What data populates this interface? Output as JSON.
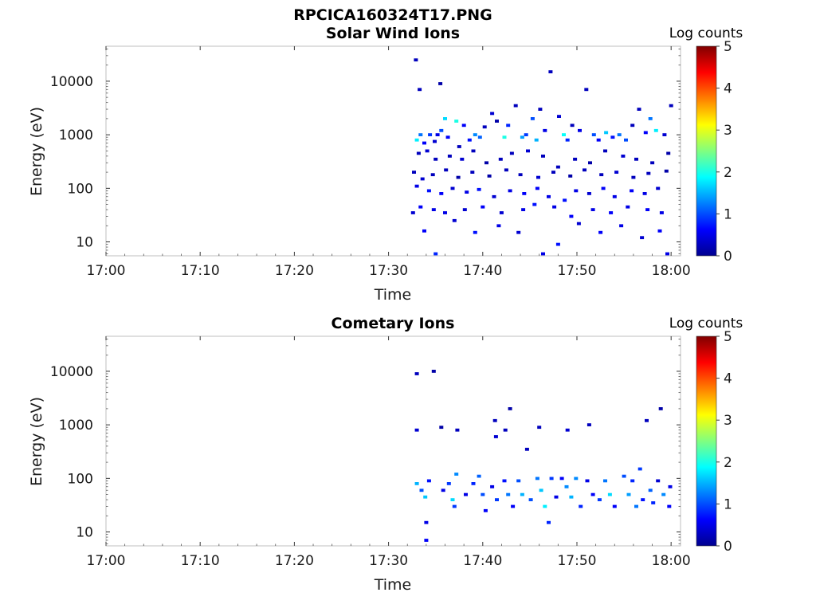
{
  "figure_title": "RPCICA160324T17.PNG",
  "chart_data": [
    {
      "type": "heatmap",
      "title": "Solar Wind Ions",
      "xlabel": "Time",
      "ylabel": "Energy (eV)",
      "x_ticks": [
        "17:00",
        "17:10",
        "17:20",
        "17:30",
        "17:40",
        "17:50",
        "18:00"
      ],
      "x_range": [
        "17:00",
        "18:01"
      ],
      "y_scale": "log",
      "y_ticks": [
        "10",
        "100",
        "1000",
        "10000"
      ],
      "y_range": [
        5.5,
        45000
      ],
      "colorbar": {
        "label": "Log counts",
        "ticks": [
          "0",
          "1",
          "2",
          "3",
          "4",
          "5"
        ],
        "range": [
          0,
          5
        ]
      },
      "cells": [
        [
          32.9,
          25000,
          0.3
        ],
        [
          33.3,
          7000,
          0.3
        ],
        [
          35.5,
          9000,
          0.2
        ],
        [
          33.0,
          800,
          1.8
        ],
        [
          33.4,
          1000,
          1.2
        ],
        [
          33.8,
          700,
          0.6
        ],
        [
          34.4,
          1000,
          0.9
        ],
        [
          34.9,
          750,
          0.4
        ],
        [
          35.2,
          1000,
          0.5
        ],
        [
          35.6,
          1200,
          1.0
        ],
        [
          36.0,
          2000,
          1.7
        ],
        [
          36.3,
          900,
          0.6
        ],
        [
          37.2,
          1800,
          2.0
        ],
        [
          37.5,
          600,
          0.3
        ],
        [
          38.0,
          1500,
          0.6
        ],
        [
          38.6,
          800,
          0.7
        ],
        [
          39.2,
          1000,
          1.3
        ],
        [
          39.7,
          900,
          1.1
        ],
        [
          40.2,
          1400,
          0.3
        ],
        [
          41.0,
          2500,
          0.4
        ],
        [
          41.5,
          1800,
          0.2
        ],
        [
          42.3,
          900,
          2.0
        ],
        [
          42.7,
          1500,
          0.8
        ],
        [
          43.5,
          3500,
          0.3
        ],
        [
          44.2,
          900,
          1.4
        ],
        [
          44.6,
          1000,
          0.9
        ],
        [
          45.3,
          2000,
          1.0
        ],
        [
          45.7,
          800,
          1.5
        ],
        [
          46.1,
          3000,
          0.3
        ],
        [
          46.6,
          1200,
          0.5
        ],
        [
          47.2,
          15000,
          0.3
        ],
        [
          48.1,
          2200,
          0.4
        ],
        [
          48.6,
          1000,
          1.9
        ],
        [
          49.0,
          800,
          0.8
        ],
        [
          49.5,
          1500,
          0.3
        ],
        [
          50.3,
          1200,
          0.5
        ],
        [
          51.0,
          7000,
          0.3
        ],
        [
          51.8,
          1000,
          1.0
        ],
        [
          52.3,
          800,
          0.6
        ],
        [
          53.1,
          1100,
          1.6
        ],
        [
          53.8,
          900,
          0.7
        ],
        [
          54.5,
          1000,
          1.2
        ],
        [
          55.2,
          800,
          1.0
        ],
        [
          55.9,
          1500,
          0.3
        ],
        [
          56.6,
          3000,
          0.3
        ],
        [
          57.3,
          1100,
          0.6
        ],
        [
          57.8,
          2000,
          1.2
        ],
        [
          58.4,
          1200,
          1.8
        ],
        [
          59.3,
          1000,
          0.4
        ],
        [
          60.0,
          3500,
          0.3
        ],
        [
          33.2,
          450,
          0.3
        ],
        [
          34.1,
          500,
          0.4
        ],
        [
          35.0,
          350,
          0.3
        ],
        [
          36.5,
          400,
          0.3
        ],
        [
          37.8,
          350,
          0.4
        ],
        [
          39.0,
          500,
          0.3
        ],
        [
          40.4,
          300,
          0.2
        ],
        [
          41.9,
          350,
          0.3
        ],
        [
          43.1,
          450,
          0.3
        ],
        [
          44.8,
          500,
          0.4
        ],
        [
          46.4,
          400,
          0.3
        ],
        [
          48.0,
          250,
          0.3
        ],
        [
          49.8,
          350,
          0.3
        ],
        [
          51.4,
          300,
          0.2
        ],
        [
          53.0,
          500,
          0.3
        ],
        [
          54.9,
          400,
          0.4
        ],
        [
          56.3,
          350,
          0.3
        ],
        [
          58.0,
          300,
          0.3
        ],
        [
          59.7,
          450,
          0.2
        ],
        [
          32.7,
          200,
          0.3
        ],
        [
          33.6,
          150,
          0.4
        ],
        [
          34.7,
          180,
          0.3
        ],
        [
          36.1,
          220,
          0.3
        ],
        [
          37.4,
          160,
          0.2
        ],
        [
          38.9,
          200,
          0.3
        ],
        [
          40.7,
          170,
          0.2
        ],
        [
          42.5,
          220,
          0.3
        ],
        [
          44.0,
          180,
          0.3
        ],
        [
          45.9,
          160,
          0.4
        ],
        [
          47.5,
          200,
          0.3
        ],
        [
          49.3,
          170,
          0.2
        ],
        [
          50.8,
          220,
          0.3
        ],
        [
          52.6,
          180,
          0.3
        ],
        [
          54.2,
          200,
          0.4
        ],
        [
          56.0,
          160,
          0.3
        ],
        [
          57.6,
          190,
          0.3
        ],
        [
          59.5,
          210,
          0.2
        ],
        [
          33.0,
          110,
          0.5
        ],
        [
          34.3,
          90,
          0.7
        ],
        [
          35.6,
          80,
          0.6
        ],
        [
          36.8,
          100,
          0.4
        ],
        [
          38.3,
          85,
          0.5
        ],
        [
          39.6,
          95,
          0.7
        ],
        [
          41.2,
          70,
          0.4
        ],
        [
          42.9,
          90,
          0.5
        ],
        [
          44.4,
          80,
          0.6
        ],
        [
          45.8,
          100,
          0.6
        ],
        [
          47.0,
          70,
          0.5
        ],
        [
          48.7,
          60,
          0.7
        ],
        [
          49.9,
          90,
          0.5
        ],
        [
          51.3,
          80,
          0.4
        ],
        [
          52.8,
          100,
          0.6
        ],
        [
          54.0,
          70,
          0.5
        ],
        [
          55.8,
          90,
          0.6
        ],
        [
          57.2,
          80,
          0.5
        ],
        [
          58.6,
          100,
          0.4
        ],
        [
          33.4,
          45,
          0.6
        ],
        [
          34.8,
          40,
          0.5
        ],
        [
          36.0,
          35,
          0.5
        ],
        [
          38.1,
          40,
          0.4
        ],
        [
          40.0,
          45,
          0.6
        ],
        [
          42.0,
          35,
          0.4
        ],
        [
          44.3,
          40,
          0.5
        ],
        [
          45.5,
          50,
          0.7
        ],
        [
          47.6,
          45,
          0.5
        ],
        [
          49.4,
          30,
          0.6
        ],
        [
          51.7,
          40,
          0.5
        ],
        [
          53.6,
          35,
          0.6
        ],
        [
          55.4,
          45,
          0.5
        ],
        [
          57.5,
          40,
          0.6
        ],
        [
          59.0,
          35,
          0.5
        ],
        [
          32.6,
          35,
          0.4
        ],
        [
          33.8,
          16,
          0.6
        ],
        [
          35.0,
          6,
          0.8
        ],
        [
          37.0,
          25,
          0.4
        ],
        [
          39.2,
          15,
          0.7
        ],
        [
          41.7,
          20,
          0.5
        ],
        [
          43.8,
          15,
          0.4
        ],
        [
          46.4,
          6,
          0.5
        ],
        [
          48.0,
          9,
          0.7
        ],
        [
          50.2,
          22,
          0.4
        ],
        [
          52.5,
          15,
          0.6
        ],
        [
          54.7,
          20,
          0.5
        ],
        [
          56.9,
          12,
          0.4
        ],
        [
          58.8,
          16,
          0.6
        ],
        [
          59.6,
          6,
          0.5
        ]
      ]
    },
    {
      "type": "heatmap",
      "title": "Cometary Ions",
      "xlabel": "Time",
      "ylabel": "Energy (eV)",
      "x_ticks": [
        "17:00",
        "17:10",
        "17:20",
        "17:30",
        "17:40",
        "17:50",
        "18:00"
      ],
      "x_range": [
        "17:00",
        "18:01"
      ],
      "y_scale": "log",
      "y_ticks": [
        "10",
        "100",
        "1000",
        "10000"
      ],
      "y_range": [
        5.5,
        45000
      ],
      "colorbar": {
        "label": "Log counts",
        "ticks": [
          "0",
          "1",
          "2",
          "3",
          "4",
          "5"
        ],
        "range": [
          0,
          5
        ]
      },
      "cells": [
        [
          33.0,
          9000,
          0.3
        ],
        [
          34.8,
          10000,
          0.2
        ],
        [
          33.0,
          800,
          0.4
        ],
        [
          35.6,
          900,
          0.2
        ],
        [
          37.3,
          800,
          0.3
        ],
        [
          41.3,
          1200,
          0.3
        ],
        [
          42.9,
          2000,
          0.2
        ],
        [
          46.0,
          900,
          0.3
        ],
        [
          49.0,
          800,
          0.4
        ],
        [
          51.3,
          1000,
          0.3
        ],
        [
          57.4,
          1200,
          0.3
        ],
        [
          58.9,
          2000,
          0.2
        ],
        [
          41.4,
          600,
          0.4
        ],
        [
          42.4,
          800,
          0.3
        ],
        [
          44.7,
          350,
          0.3
        ],
        [
          33.0,
          80,
          1.5
        ],
        [
          33.5,
          60,
          1.0
        ],
        [
          33.9,
          45,
          1.6
        ],
        [
          34.3,
          90,
          0.7
        ],
        [
          34.0,
          15,
          0.5
        ],
        [
          34.0,
          7,
          0.6
        ],
        [
          35.8,
          60,
          0.5
        ],
        [
          36.4,
          80,
          0.9
        ],
        [
          36.8,
          40,
          1.7
        ],
        [
          37.2,
          120,
          1.3
        ],
        [
          37.0,
          30,
          0.9
        ],
        [
          38.2,
          50,
          0.5
        ],
        [
          39.0,
          80,
          0.8
        ],
        [
          39.6,
          110,
          1.1
        ],
        [
          40.0,
          50,
          1.0
        ],
        [
          40.3,
          25,
          0.6
        ],
        [
          41.0,
          70,
          0.5
        ],
        [
          41.5,
          40,
          0.9
        ],
        [
          42.3,
          90,
          0.7
        ],
        [
          42.7,
          50,
          1.2
        ],
        [
          43.2,
          30,
          0.6
        ],
        [
          43.8,
          90,
          1.0
        ],
        [
          44.2,
          50,
          1.5
        ],
        [
          45.1,
          40,
          1.0
        ],
        [
          45.8,
          100,
          1.2
        ],
        [
          46.2,
          60,
          1.6
        ],
        [
          46.6,
          30,
          1.8
        ],
        [
          47.0,
          15,
          0.8
        ],
        [
          47.3,
          100,
          0.9
        ],
        [
          47.8,
          45,
          0.5
        ],
        [
          48.4,
          100,
          0.6
        ],
        [
          48.9,
          70,
          1.3
        ],
        [
          49.4,
          45,
          1.5
        ],
        [
          49.9,
          100,
          1.3
        ],
        [
          50.4,
          30,
          0.8
        ],
        [
          51.1,
          90,
          0.5
        ],
        [
          51.7,
          50,
          0.6
        ],
        [
          52.4,
          40,
          0.9
        ],
        [
          53.0,
          90,
          1.2
        ],
        [
          53.5,
          50,
          1.7
        ],
        [
          54.0,
          30,
          0.6
        ],
        [
          55.0,
          110,
          1.0
        ],
        [
          55.5,
          50,
          1.4
        ],
        [
          55.9,
          90,
          0.8
        ],
        [
          56.3,
          30,
          1.2
        ],
        [
          56.7,
          150,
          0.9
        ],
        [
          57.0,
          40,
          0.7
        ],
        [
          57.8,
          60,
          1.1
        ],
        [
          58.1,
          35,
          0.8
        ],
        [
          58.6,
          90,
          0.4
        ],
        [
          59.2,
          50,
          1.3
        ],
        [
          59.8,
          30,
          0.6
        ],
        [
          59.9,
          70,
          0.5
        ]
      ]
    }
  ]
}
